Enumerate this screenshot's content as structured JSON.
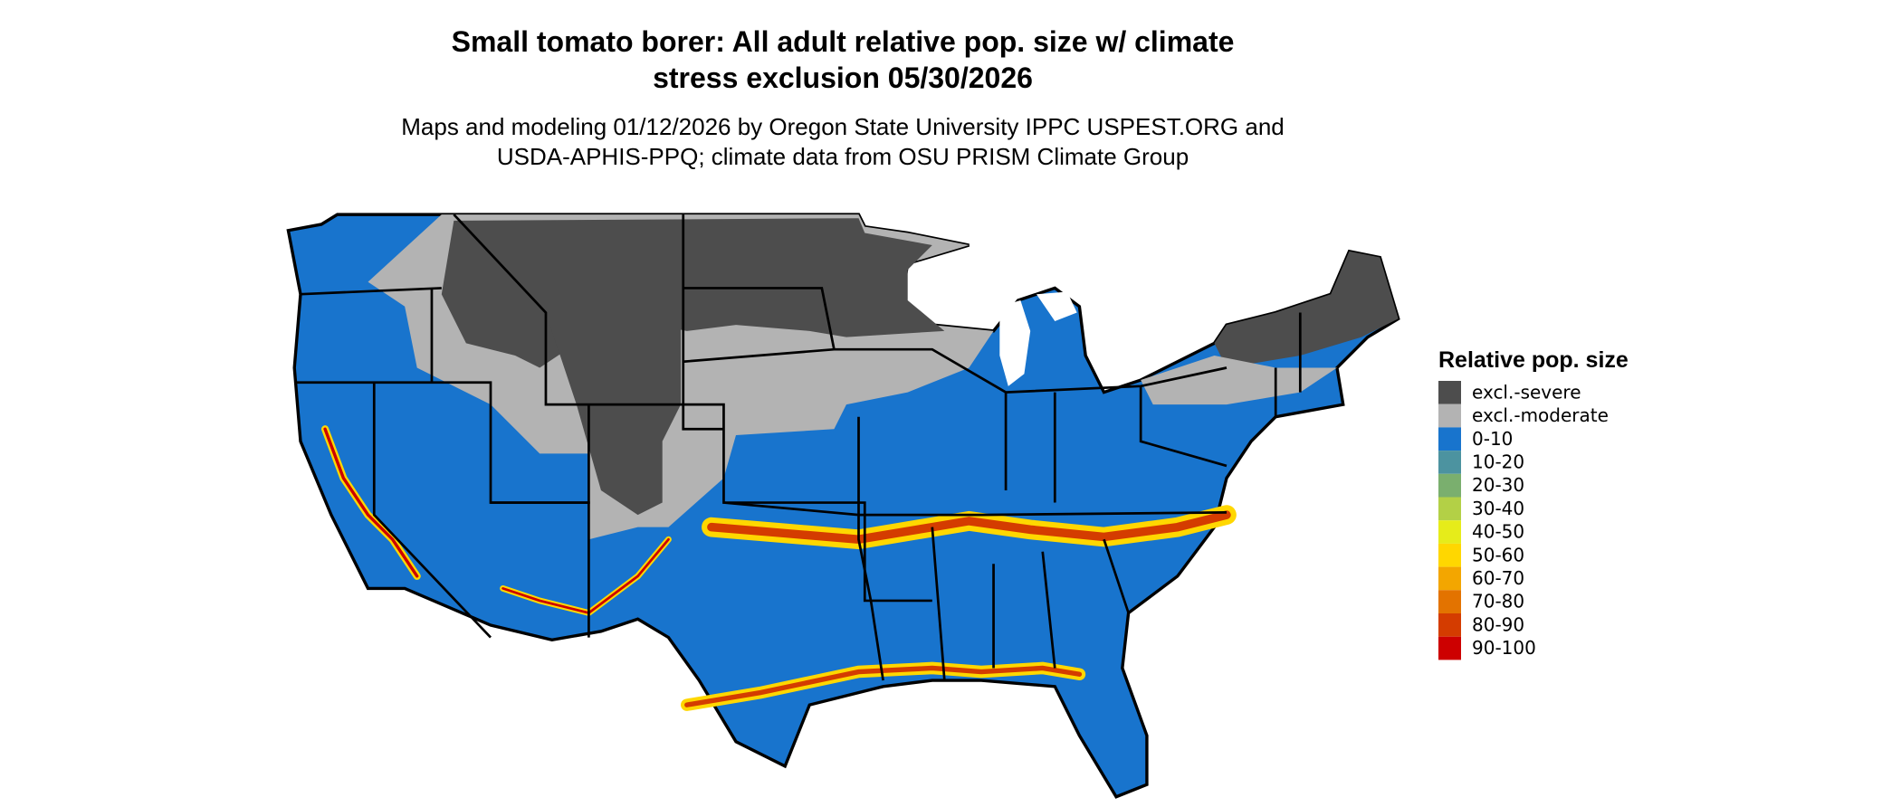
{
  "title": [
    "Small tomato borer: All adult relative pop. size w/ climate",
    "stress exclusion 05/30/2026"
  ],
  "subtitle": [
    "Maps and modeling 01/12/2026 by Oregon State University IPPC USPEST.ORG and",
    "USDA-APHIS-PPQ; climate data from OSU PRISM Climate Group"
  ],
  "legend": {
    "title": "Relative pop. size",
    "items": [
      {
        "label": "excl.-severe",
        "color": "#4d4d4d"
      },
      {
        "label": "excl.-moderate",
        "color": "#b3b3b3"
      },
      {
        "label": "0-10",
        "color": "#1874cd"
      },
      {
        "label": "10-20",
        "color": "#4c93a0"
      },
      {
        "label": "20-30",
        "color": "#7aaf6e"
      },
      {
        "label": "30-40",
        "color": "#b3d046"
      },
      {
        "label": "40-50",
        "color": "#e6ec1a"
      },
      {
        "label": "50-60",
        "color": "#ffd700"
      },
      {
        "label": "60-70",
        "color": "#f3a600"
      },
      {
        "label": "70-80",
        "color": "#e37300"
      },
      {
        "label": "80-90",
        "color": "#d43c00"
      },
      {
        "label": "90-100",
        "color": "#cd0000"
      }
    ]
  }
}
